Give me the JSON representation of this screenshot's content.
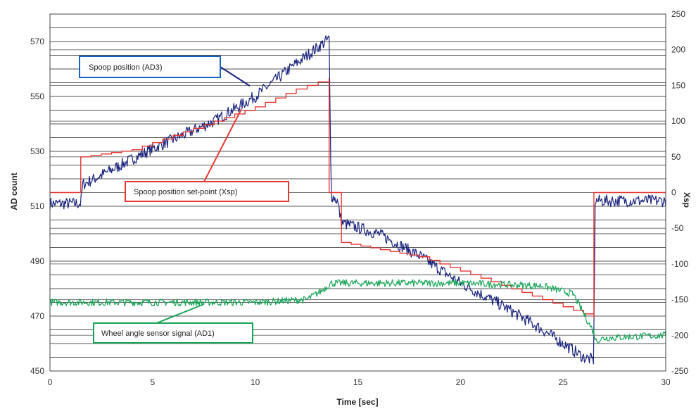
{
  "chart_data": {
    "type": "line",
    "xlabel": "Time [sec]",
    "ylabel_left": "AD count",
    "ylabel_right": "Xsp",
    "xlim": [
      0,
      30
    ],
    "ylim_left": [
      450,
      580
    ],
    "ylim_right": [
      -250,
      250
    ],
    "x_ticks": [
      0,
      5,
      10,
      15,
      20,
      25,
      30
    ],
    "y_left_ticks": [
      450,
      470,
      490,
      510,
      530,
      550,
      570
    ],
    "y_right_ticks": [
      -250,
      -200,
      -150,
      -100,
      -50,
      0,
      50,
      100,
      150,
      200,
      250
    ],
    "grid": "horizontal",
    "series": [
      {
        "name": "Spoop position (AD3)",
        "axis": "left",
        "color": "#1a237e",
        "noise": 2.2,
        "points": [
          [
            0,
            511
          ],
          [
            1.5,
            511
          ],
          [
            1.6,
            518
          ],
          [
            1.9,
            519
          ],
          [
            5,
            531
          ],
          [
            8,
            541
          ],
          [
            10,
            550
          ],
          [
            12,
            562
          ],
          [
            13.6,
            571
          ],
          [
            13.7,
            514
          ],
          [
            14,
            512
          ],
          [
            14.2,
            504
          ],
          [
            16,
            500
          ],
          [
            18,
            492
          ],
          [
            20,
            482
          ],
          [
            22,
            474
          ],
          [
            24,
            465
          ],
          [
            26,
            455
          ],
          [
            26.5,
            454
          ],
          [
            26.55,
            512
          ],
          [
            30,
            512
          ]
        ]
      },
      {
        "name": "Spoop position set-point (Xsp)",
        "axis": "right",
        "color": "#e53935",
        "step": true,
        "points": [
          [
            0,
            0
          ],
          [
            1.5,
            0
          ],
          [
            1.5,
            50
          ],
          [
            4,
            60
          ],
          [
            6,
            80
          ],
          [
            8,
            100
          ],
          [
            10,
            120
          ],
          [
            12,
            145
          ],
          [
            13.6,
            160
          ],
          [
            13.6,
            0
          ],
          [
            14.2,
            0
          ],
          [
            14.2,
            -70
          ],
          [
            18,
            -90
          ],
          [
            20,
            -110
          ],
          [
            22,
            -130
          ],
          [
            24,
            -150
          ],
          [
            25.5,
            -165
          ],
          [
            26.5,
            -175
          ],
          [
            26.5,
            0
          ],
          [
            30,
            0
          ]
        ]
      },
      {
        "name": "Wheel angle sensor signal (AD1)",
        "axis": "left",
        "color": "#18a558",
        "noise": 1.3,
        "points": [
          [
            0,
            475
          ],
          [
            10,
            475
          ],
          [
            12.5,
            476
          ],
          [
            13.2,
            479
          ],
          [
            13.7,
            482
          ],
          [
            14.5,
            482
          ],
          [
            20,
            482
          ],
          [
            24,
            481
          ],
          [
            25.5,
            478
          ],
          [
            26.5,
            464
          ],
          [
            26.6,
            461
          ],
          [
            27,
            462
          ],
          [
            30,
            463
          ]
        ]
      }
    ],
    "annotations": [
      {
        "text": "Spoop position (AD3)",
        "border_color": "#1565c0"
      },
      {
        "text": "Spoop position set-point (Xsp)",
        "border_color": "#e53935"
      },
      {
        "text": "Wheel angle sensor signal (AD1)",
        "border_color": "#18a558"
      }
    ]
  }
}
